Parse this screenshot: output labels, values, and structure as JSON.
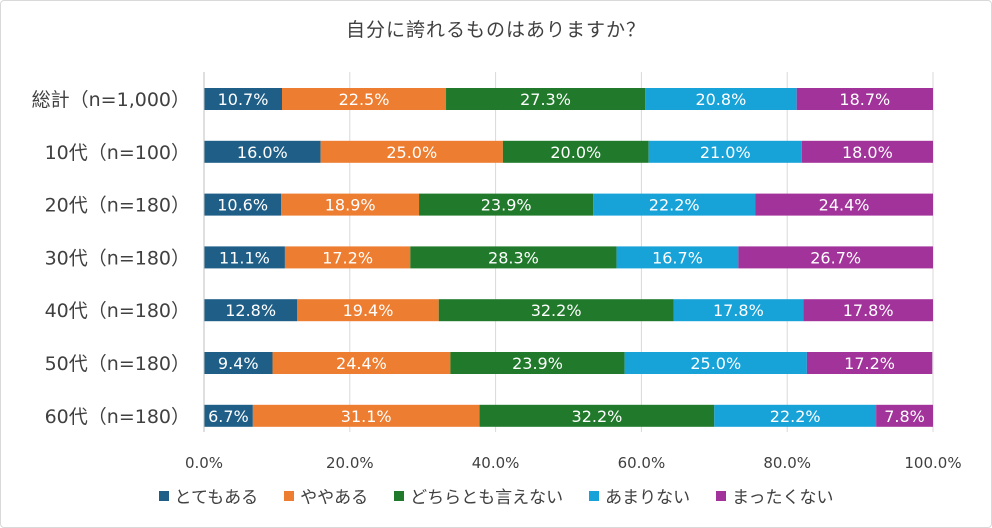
{
  "chart_data": {
    "type": "bar",
    "orientation": "horizontal-stacked-100",
    "title": "自分に誇れるものはありますか？",
    "categories": [
      "総計（n=1,000）",
      "10代（n=100）",
      "20代（n=180）",
      "30代（n=180）",
      "40代（n=180）",
      "50代（n=180）",
      "60代（n=180）"
    ],
    "series": [
      {
        "name": "とてもある",
        "color": "#1f5f87",
        "values": [
          10.7,
          16.0,
          10.6,
          11.1,
          12.8,
          9.4,
          6.7
        ],
        "labels": [
          "10.7%",
          "16.0%",
          "10.6%",
          "11.1%",
          "12.8%",
          "9.4%",
          "6.7%"
        ]
      },
      {
        "name": "ややある",
        "color": "#ed7d31",
        "values": [
          22.5,
          25.0,
          18.9,
          17.2,
          19.4,
          24.4,
          31.1
        ],
        "labels": [
          "22.5%",
          "25.0%",
          "18.9%",
          "17.2%",
          "19.4%",
          "24.4%",
          "31.1%"
        ]
      },
      {
        "name": "どちらとも言えない",
        "color": "#217a2b",
        "values": [
          27.3,
          20.0,
          23.9,
          28.3,
          32.2,
          23.9,
          32.2
        ],
        "labels": [
          "27.3%",
          "20.0%",
          "23.9%",
          "28.3%",
          "32.2%",
          "23.9%",
          "32.2%"
        ]
      },
      {
        "name": "あまりない",
        "color": "#17a2d8",
        "values": [
          20.8,
          21.0,
          22.2,
          16.7,
          17.8,
          25.0,
          22.2
        ],
        "labels": [
          "20.8%",
          "21.0%",
          "22.2%",
          "16.7%",
          "17.8%",
          "25.0%",
          "22.2%"
        ]
      },
      {
        "name": "まったくない",
        "color": "#a1339a",
        "values": [
          18.7,
          18.0,
          24.4,
          26.7,
          17.8,
          17.2,
          7.8
        ],
        "labels": [
          "18.7%",
          "18.0%",
          "24.4%",
          "26.7%",
          "17.8%",
          "17.2%",
          "7.8%"
        ]
      }
    ],
    "xlim": [
      0,
      100
    ],
    "xticks": [
      0,
      20,
      40,
      60,
      80,
      100
    ],
    "xtick_labels": [
      "0.0%",
      "20.0%",
      "40.0%",
      "60.0%",
      "80.0%",
      "100.0%"
    ],
    "grid": true,
    "legend_position": "bottom"
  }
}
